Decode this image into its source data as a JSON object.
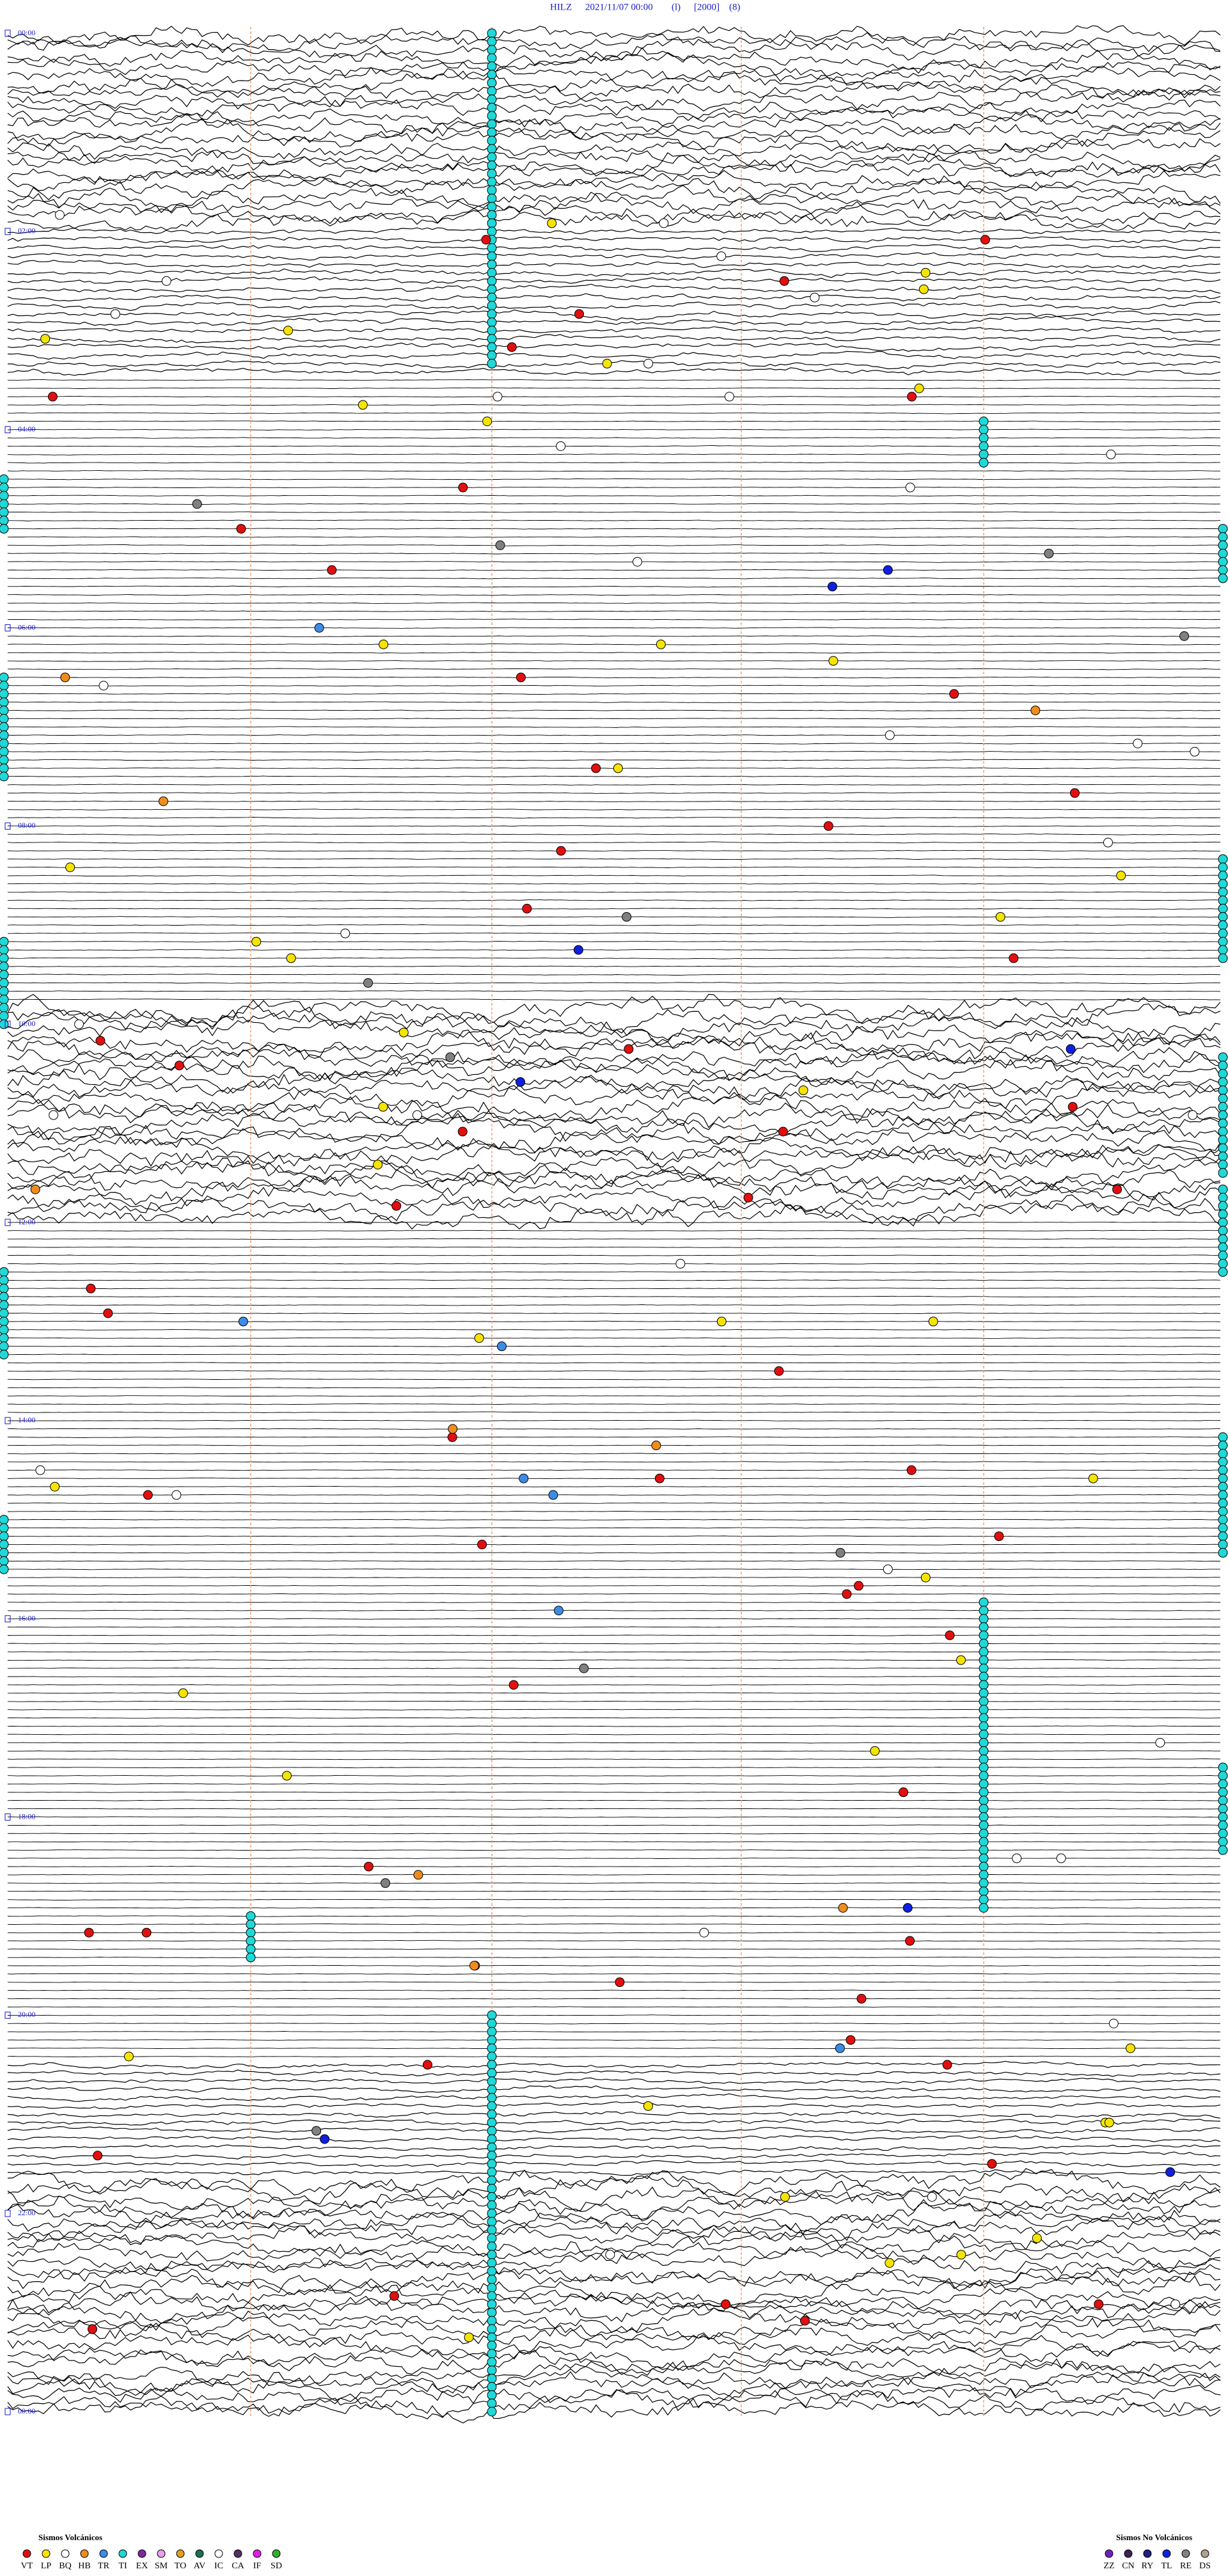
{
  "header": {
    "station": "HILZ",
    "datetime": "2021/11/07 00:00",
    "mode": "(l)",
    "gain": "[2000]",
    "filter": "(8)"
  },
  "time_labels": [
    "00:00",
    "02:00",
    "04:00",
    "06:00",
    "08:00",
    "10:00",
    "12:00",
    "14:00",
    "16:00",
    "18:00",
    "20:00",
    "22:00",
    "00:00"
  ],
  "legend": {
    "volcanic": {
      "title": "Sismos Volcánicos",
      "items": [
        {
          "code": "VT",
          "color": "#e01010"
        },
        {
          "code": "LP",
          "color": "#f5e400"
        },
        {
          "code": "BQ",
          "color": "#ffffff"
        },
        {
          "code": "HB",
          "color": "#f08c1e"
        },
        {
          "code": "TR",
          "color": "#3c8ce6"
        },
        {
          "code": "TI",
          "color": "#20d8d8"
        },
        {
          "code": "EX",
          "color": "#7a2aa0"
        },
        {
          "code": "SM",
          "color": "#e8a0e8"
        },
        {
          "code": "TO",
          "color": "#e0a020"
        },
        {
          "code": "AV",
          "color": "#1e6e50"
        },
        {
          "code": "IC",
          "color": "#ffffff"
        },
        {
          "code": "CA",
          "color": "#503060"
        },
        {
          "code": "IF",
          "color": "#e020e0"
        },
        {
          "code": "SD",
          "color": "#30b030"
        }
      ]
    },
    "non_volcanic": {
      "title": "Sismos No Volcánicos",
      "items": [
        {
          "code": "ZZ",
          "color": "#7020c0"
        },
        {
          "code": "CN",
          "color": "#402050"
        },
        {
          "code": "RY",
          "color": "#202080"
        },
        {
          "code": "TL",
          "color": "#1020e0"
        },
        {
          "code": "RE",
          "color": "#808080"
        },
        {
          "code": "DS",
          "color": "#b0a090"
        }
      ]
    }
  }
}
